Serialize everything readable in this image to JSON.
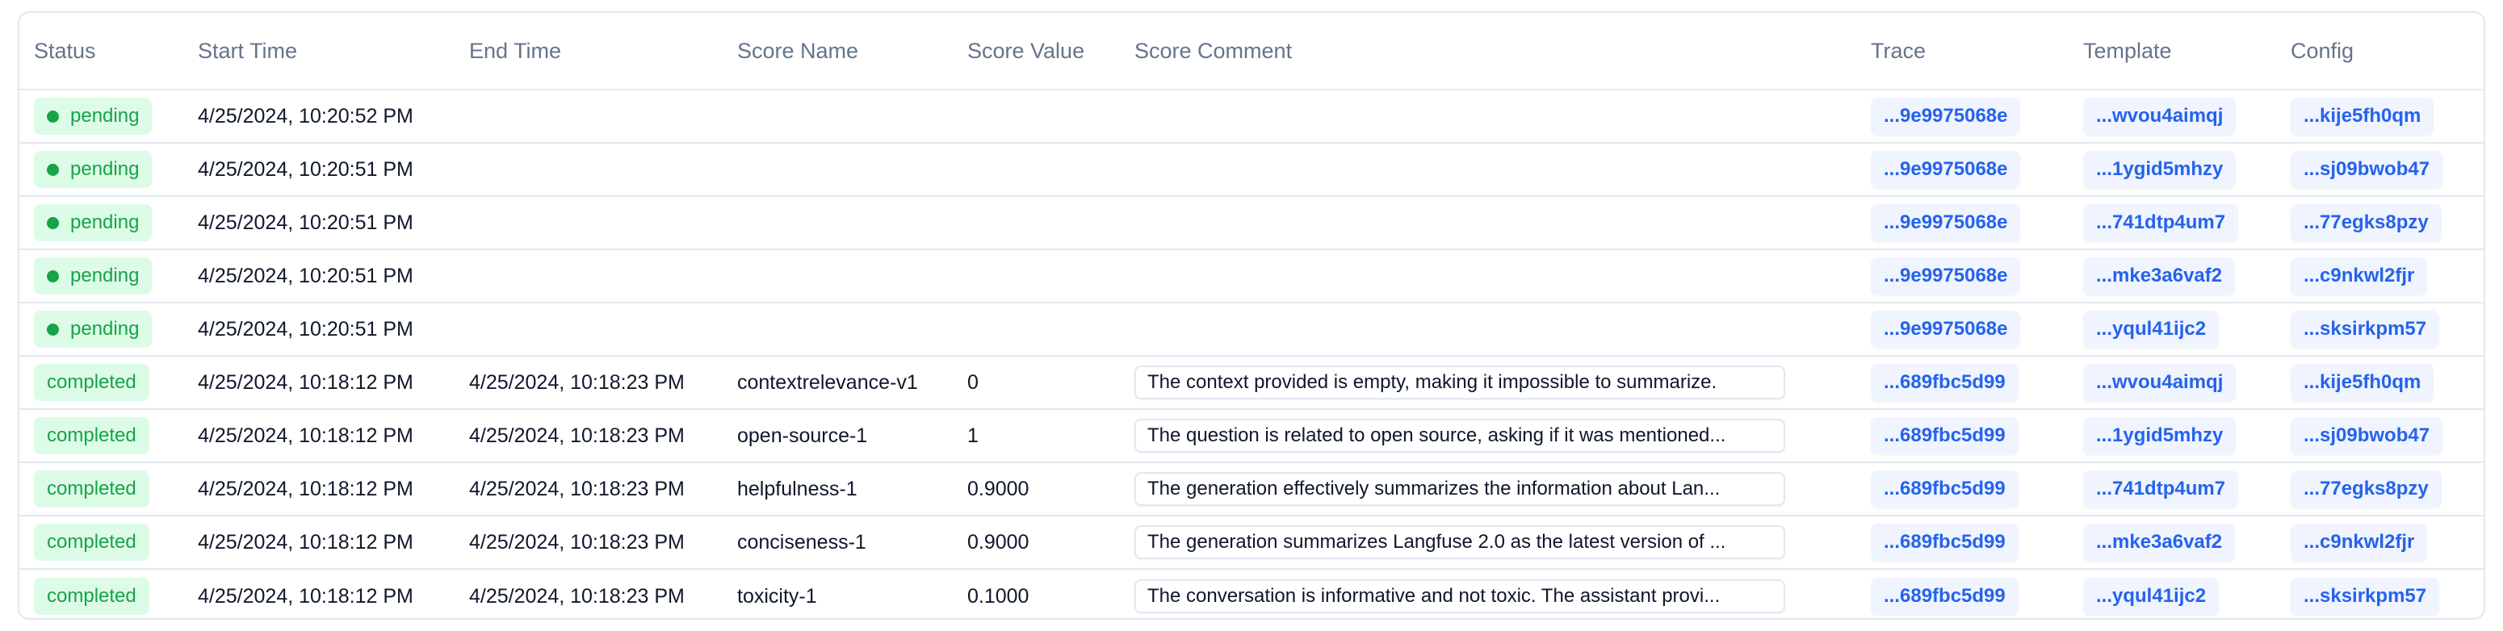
{
  "columns": [
    "Status",
    "Start Time",
    "End Time",
    "Score Name",
    "Score Value",
    "Score Comment",
    "Trace",
    "Template",
    "Config"
  ],
  "rows": [
    {
      "status": "pending",
      "start": "4/25/2024, 10:20:52 PM",
      "end": "",
      "score_name": "",
      "score_value": "",
      "comment": "",
      "trace": "...9e9975068e",
      "template": "...wvou4aimqj",
      "config": "...kije5fh0qm"
    },
    {
      "status": "pending",
      "start": "4/25/2024, 10:20:51 PM",
      "end": "",
      "score_name": "",
      "score_value": "",
      "comment": "",
      "trace": "...9e9975068e",
      "template": "...1ygid5mhzy",
      "config": "...sj09bwob47"
    },
    {
      "status": "pending",
      "start": "4/25/2024, 10:20:51 PM",
      "end": "",
      "score_name": "",
      "score_value": "",
      "comment": "",
      "trace": "...9e9975068e",
      "template": "...741dtp4um7",
      "config": "...77egks8pzy"
    },
    {
      "status": "pending",
      "start": "4/25/2024, 10:20:51 PM",
      "end": "",
      "score_name": "",
      "score_value": "",
      "comment": "",
      "trace": "...9e9975068e",
      "template": "...mke3a6vaf2",
      "config": "...c9nkwl2fjr"
    },
    {
      "status": "pending",
      "start": "4/25/2024, 10:20:51 PM",
      "end": "",
      "score_name": "",
      "score_value": "",
      "comment": "",
      "trace": "...9e9975068e",
      "template": "...yqul41ijc2",
      "config": "...sksirkpm57"
    },
    {
      "status": "completed",
      "start": "4/25/2024, 10:18:12 PM",
      "end": "4/25/2024, 10:18:23 PM",
      "score_name": "contextrelevance-v1",
      "score_value": "0",
      "comment": "The context provided is empty, making it impossible to summarize.",
      "trace": "...689fbc5d99",
      "template": "...wvou4aimqj",
      "config": "...kije5fh0qm"
    },
    {
      "status": "completed",
      "start": "4/25/2024, 10:18:12 PM",
      "end": "4/25/2024, 10:18:23 PM",
      "score_name": "open-source-1",
      "score_value": "1",
      "comment": "The question is related to open source, asking if it was mentioned...",
      "trace": "...689fbc5d99",
      "template": "...1ygid5mhzy",
      "config": "...sj09bwob47"
    },
    {
      "status": "completed",
      "start": "4/25/2024, 10:18:12 PM",
      "end": "4/25/2024, 10:18:23 PM",
      "score_name": "helpfulness-1",
      "score_value": "0.9000",
      "comment": "The generation effectively summarizes the information about Lan...",
      "trace": "...689fbc5d99",
      "template": "...741dtp4um7",
      "config": "...77egks8pzy"
    },
    {
      "status": "completed",
      "start": "4/25/2024, 10:18:12 PM",
      "end": "4/25/2024, 10:18:23 PM",
      "score_name": "conciseness-1",
      "score_value": "0.9000",
      "comment": "The generation summarizes Langfuse 2.0 as the latest version of ...",
      "trace": "...689fbc5d99",
      "template": "...mke3a6vaf2",
      "config": "...c9nkwl2fjr"
    },
    {
      "status": "completed",
      "start": "4/25/2024, 10:18:12 PM",
      "end": "4/25/2024, 10:18:23 PM",
      "score_name": "toxicity-1",
      "score_value": "0.1000",
      "comment": "The conversation is informative and not toxic. The assistant provi...",
      "trace": "...689fbc5d99",
      "template": "...yqul41ijc2",
      "config": "...sksirkpm57"
    }
  ],
  "colors": {
    "status_green": "#16a34a",
    "status_bg": "#dcfce7",
    "link_blue": "#2563eb",
    "chip_bg": "#eff4ff",
    "header_text": "#64748b",
    "border": "#e2e8f0"
  }
}
